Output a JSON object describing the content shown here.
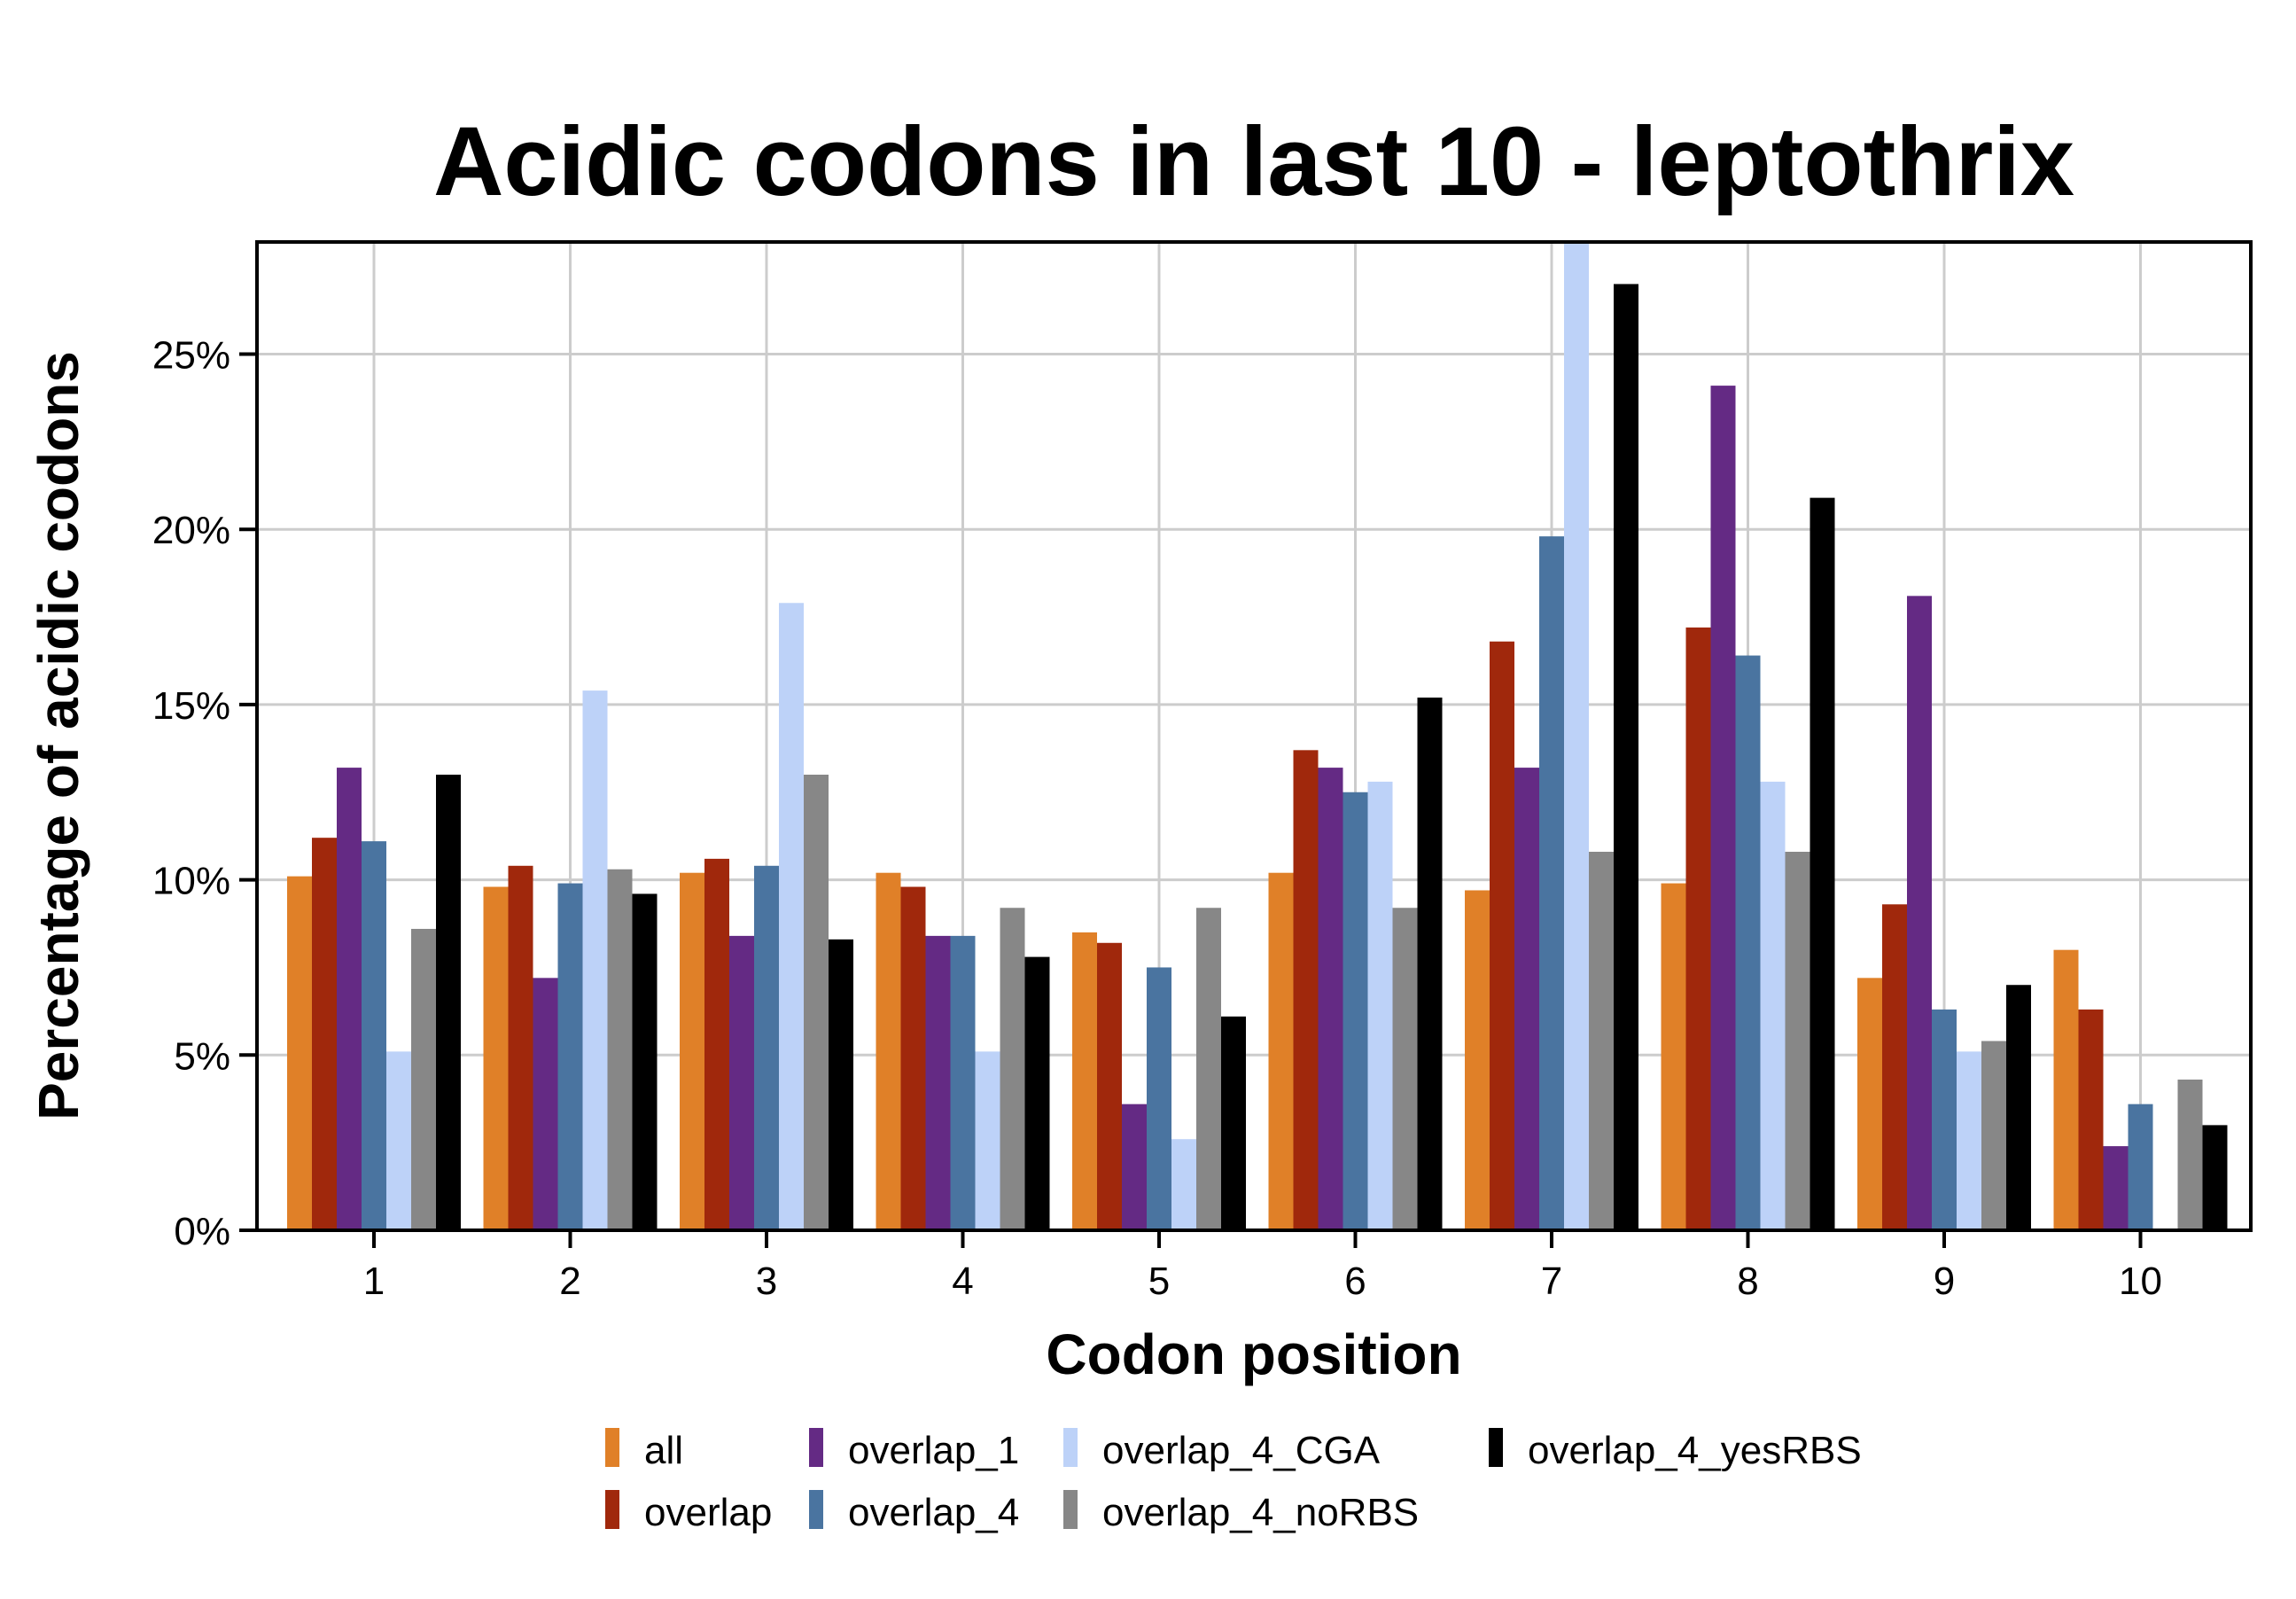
{
  "chart_data": {
    "type": "bar",
    "title": "Acidic codons in last 10 - leptothrix",
    "xlabel": "Codon position",
    "ylabel": "Percentage of acidic codons",
    "categories": [
      "1",
      "2",
      "3",
      "4",
      "5",
      "6",
      "7",
      "8",
      "9",
      "10"
    ],
    "ylim": [
      0,
      28.2
    ],
    "yticks": [
      0,
      5,
      10,
      15,
      20,
      25
    ],
    "ytick_labels": [
      "0%",
      "5%",
      "10%",
      "15%",
      "20%",
      "25%"
    ],
    "grid": true,
    "legend_position": "bottom",
    "series": [
      {
        "name": "all",
        "color": "#E08028",
        "values": [
          10.1,
          9.8,
          10.2,
          10.2,
          8.5,
          10.2,
          9.7,
          9.9,
          7.2,
          8.0
        ]
      },
      {
        "name": "overlap",
        "color": "#A0280C",
        "values": [
          11.2,
          10.4,
          10.6,
          9.8,
          8.2,
          13.7,
          16.8,
          17.2,
          9.3,
          6.3
        ]
      },
      {
        "name": "overlap_1",
        "color": "#642A84",
        "values": [
          13.2,
          7.2,
          8.4,
          8.4,
          3.6,
          13.2,
          13.2,
          24.1,
          18.1,
          2.4
        ]
      },
      {
        "name": "overlap_4",
        "color": "#4A74A0",
        "values": [
          11.1,
          9.9,
          10.4,
          8.4,
          7.5,
          12.5,
          19.8,
          16.4,
          6.3,
          3.6
        ]
      },
      {
        "name": "overlap_4_CGA",
        "color": "#BDD2F8",
        "values": [
          5.1,
          15.4,
          17.9,
          5.1,
          2.6,
          12.8,
          28.2,
          12.8,
          5.1,
          0
        ]
      },
      {
        "name": "overlap_4_noRBS",
        "color": "#878787",
        "values": [
          8.6,
          10.3,
          13.0,
          9.2,
          9.2,
          9.2,
          10.8,
          10.8,
          5.4,
          4.3
        ]
      },
      {
        "name": "overlap_4_yesRBS",
        "color": "#000000",
        "values": [
          13.0,
          9.6,
          8.3,
          7.8,
          6.1,
          15.2,
          27.0,
          20.9,
          7.0,
          3.0
        ]
      }
    ]
  }
}
